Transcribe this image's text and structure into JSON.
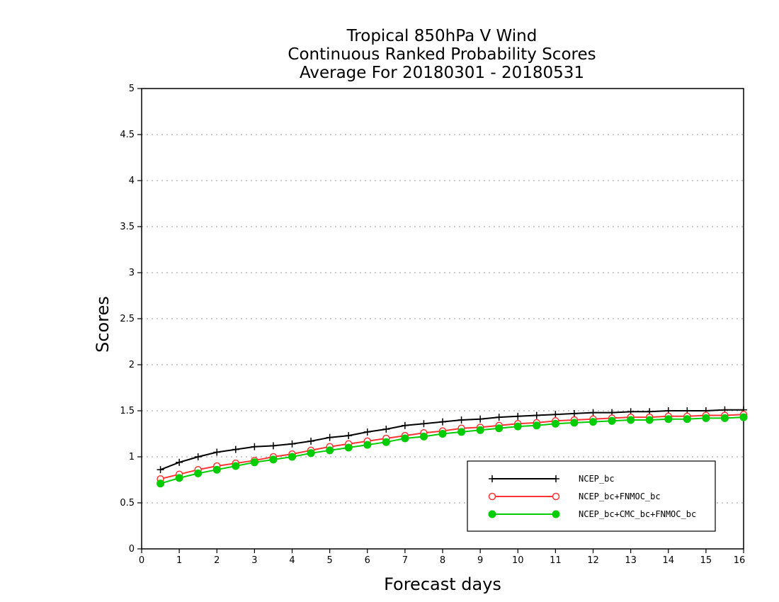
{
  "chart_data": {
    "type": "line",
    "title": [
      "Tropical 850hPa V Wind",
      "Continuous Ranked Probability Scores",
      "Average For 20180301 - 20180531"
    ],
    "xlabel": "Forecast days",
    "ylabel": "Scores",
    "xlim": [
      0,
      16
    ],
    "ylim": [
      0,
      5
    ],
    "xticks": [
      "0",
      "1",
      "2",
      "3",
      "4",
      "5",
      "6",
      "7",
      "8",
      "9",
      "10",
      "11",
      "12",
      "13",
      "14",
      "15",
      "16"
    ],
    "yticks": [
      "0",
      "0.5",
      "1",
      "1.5",
      "2",
      "2.5",
      "3",
      "3.5",
      "4",
      "4.5",
      "5"
    ],
    "grid": "horizontal dotted",
    "legend_position": "bottom-right",
    "x": [
      0.5,
      1,
      1.5,
      2,
      2.5,
      3,
      3.5,
      4,
      4.5,
      5,
      5.5,
      6,
      6.5,
      7,
      7.5,
      8,
      8.5,
      9,
      9.5,
      10,
      10.5,
      11,
      11.5,
      12,
      12.5,
      13,
      13.5,
      14,
      14.5,
      15,
      15.5,
      16
    ],
    "series": [
      {
        "name": "NCEP_bc",
        "color": "#000000",
        "marker": "plus",
        "values": [
          0.86,
          0.94,
          1.0,
          1.05,
          1.08,
          1.11,
          1.12,
          1.14,
          1.17,
          1.21,
          1.23,
          1.27,
          1.3,
          1.34,
          1.36,
          1.38,
          1.4,
          1.41,
          1.43,
          1.44,
          1.45,
          1.46,
          1.47,
          1.48,
          1.48,
          1.49,
          1.49,
          1.5,
          1.5,
          1.5,
          1.51,
          1.51
        ]
      },
      {
        "name": "NCEP_bc+FNMOC_bc",
        "color": "#ff3333",
        "marker": "open-circle",
        "values": [
          0.76,
          0.81,
          0.86,
          0.9,
          0.93,
          0.96,
          1.0,
          1.03,
          1.07,
          1.11,
          1.14,
          1.17,
          1.2,
          1.23,
          1.26,
          1.28,
          1.31,
          1.32,
          1.34,
          1.36,
          1.37,
          1.39,
          1.4,
          1.41,
          1.42,
          1.43,
          1.43,
          1.44,
          1.44,
          1.45,
          1.45,
          1.46
        ]
      },
      {
        "name": "NCEP_bc+CMC_bc+FNMOC_bc",
        "color": "#00cc00",
        "marker": "filled-circle",
        "values": [
          0.71,
          0.77,
          0.82,
          0.86,
          0.9,
          0.94,
          0.97,
          1.0,
          1.04,
          1.07,
          1.1,
          1.13,
          1.16,
          1.2,
          1.22,
          1.25,
          1.27,
          1.29,
          1.31,
          1.33,
          1.34,
          1.36,
          1.37,
          1.38,
          1.39,
          1.4,
          1.4,
          1.41,
          1.41,
          1.42,
          1.42,
          1.43
        ]
      }
    ]
  }
}
